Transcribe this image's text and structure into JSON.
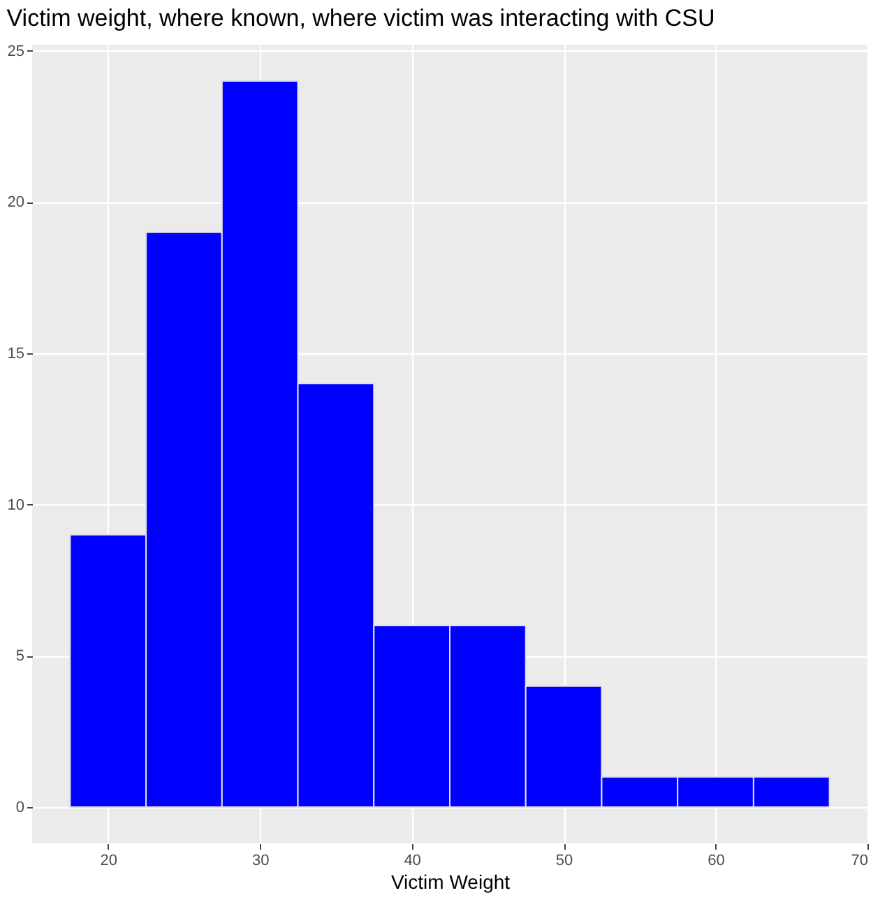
{
  "chart_data": {
    "type": "histogram",
    "title": "Victim weight, where known, where victim was interacting with CSU",
    "xlabel": "Victim Weight",
    "bins": [
      17.5,
      22.5,
      27.5,
      32.5,
      37.5,
      42.5,
      47.5,
      52.5,
      57.5,
      62.5,
      67.5
    ],
    "values": [
      9,
      19,
      24,
      14,
      6,
      6,
      4,
      1,
      1,
      1
    ],
    "color": "#0000ff",
    "xlim": [
      15,
      70
    ],
    "xticks": [
      20,
      30,
      40,
      50,
      60,
      70
    ],
    "ylim": [
      -1.2,
      25.2
    ],
    "yticks": [
      0,
      5,
      10,
      15,
      20,
      25
    ],
    "grid": true
  }
}
